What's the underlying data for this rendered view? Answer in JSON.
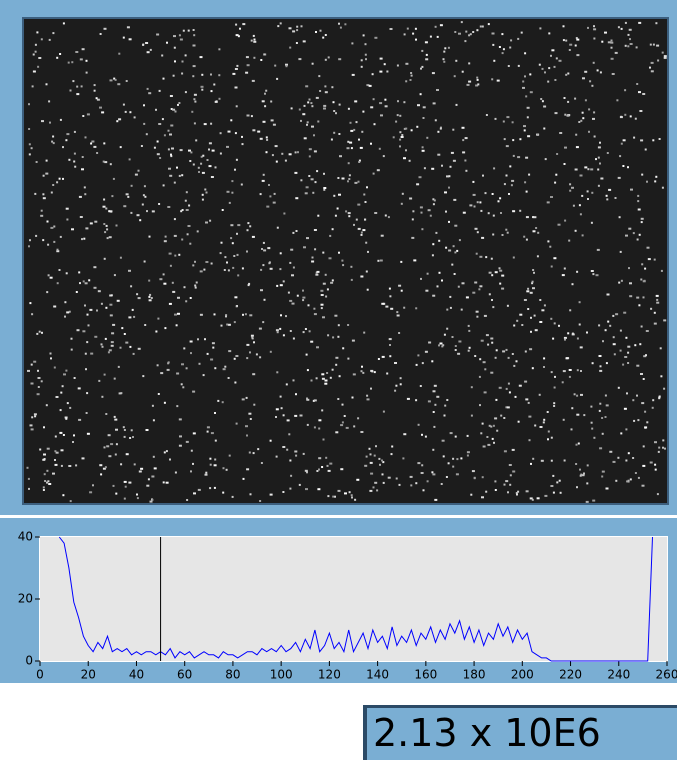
{
  "chart_data": {
    "type": "line",
    "x": [
      8,
      10,
      12,
      14,
      16,
      18,
      20,
      22,
      24,
      26,
      28,
      30,
      32,
      34,
      36,
      38,
      40,
      42,
      44,
      46,
      48,
      50,
      52,
      54,
      56,
      58,
      60,
      62,
      64,
      66,
      68,
      70,
      72,
      74,
      76,
      78,
      80,
      82,
      84,
      86,
      88,
      90,
      92,
      94,
      96,
      98,
      100,
      102,
      104,
      106,
      108,
      110,
      112,
      114,
      116,
      118,
      120,
      122,
      124,
      126,
      128,
      130,
      132,
      134,
      136,
      138,
      140,
      142,
      144,
      146,
      148,
      150,
      152,
      154,
      156,
      158,
      160,
      162,
      164,
      166,
      168,
      170,
      172,
      174,
      176,
      178,
      180,
      182,
      184,
      186,
      188,
      190,
      192,
      194,
      196,
      198,
      200,
      202,
      204,
      206,
      208,
      210,
      212,
      214,
      216,
      218,
      220,
      222,
      224,
      226,
      228,
      230,
      232,
      234,
      236,
      238,
      240,
      242,
      244,
      246,
      248,
      250,
      252,
      254
    ],
    "series": [
      {
        "color": "#0000ff",
        "values": [
          40,
          38,
          30,
          19,
          14,
          8,
          5,
          3,
          6,
          4,
          8,
          3,
          4,
          3,
          4,
          2,
          3,
          2,
          3,
          3,
          2,
          3,
          2,
          4,
          1,
          3,
          2,
          3,
          1,
          2,
          3,
          2,
          2,
          1,
          3,
          2,
          2,
          1,
          2,
          3,
          3,
          2,
          4,
          3,
          4,
          3,
          5,
          3,
          4,
          6,
          3,
          7,
          4,
          10,
          3,
          5,
          9,
          4,
          6,
          3,
          10,
          3,
          6,
          9,
          4,
          10,
          6,
          8,
          4,
          11,
          5,
          8,
          6,
          10,
          5,
          9,
          7,
          11,
          6,
          10,
          7,
          12,
          9,
          13,
          7,
          11,
          6,
          10,
          5,
          9,
          7,
          12,
          8,
          11,
          6,
          10,
          7,
          9,
          3,
          2,
          1,
          1,
          0,
          0,
          0,
          0,
          0,
          0,
          0,
          0,
          0,
          0,
          0,
          0,
          0,
          0,
          0,
          0,
          0,
          0,
          0,
          0,
          0,
          40
        ]
      }
    ],
    "cursor_x": 50,
    "xlim": [
      0,
      260
    ],
    "xticks": [
      0,
      20,
      40,
      60,
      80,
      100,
      120,
      140,
      160,
      180,
      200,
      220,
      240,
      260
    ],
    "ylim": [
      0,
      40
    ],
    "yticks": [
      0,
      20,
      40
    ]
  },
  "readout": "2.13 x 10E6"
}
